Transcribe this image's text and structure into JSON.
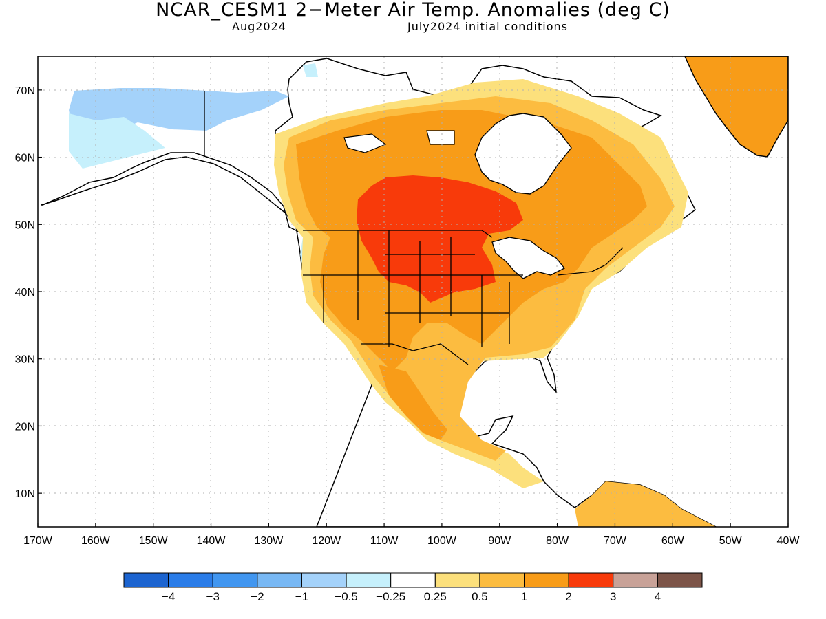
{
  "header": {
    "title": "NCAR_CESM1 2−Meter Air Temp. Anomalies (deg C)",
    "valid_month": "Aug2024",
    "init_conditions": "July2024 initial conditions"
  },
  "axes": {
    "lon_labels": [
      "170W",
      "160W",
      "150W",
      "140W",
      "130W",
      "120W",
      "110W",
      "100W",
      "90W",
      "80W",
      "70W",
      "60W",
      "50W",
      "40W"
    ],
    "lat_labels": [
      "70N",
      "60N",
      "50N",
      "40N",
      "30N",
      "20N",
      "10N"
    ],
    "lon_range": [
      -170,
      -40
    ],
    "lat_range": [
      5,
      75
    ],
    "grid": "dotted"
  },
  "colorbar": {
    "labels": [
      "−4",
      "−3",
      "−2",
      "−1",
      "−0.5",
      "−0.25",
      "0.25",
      "0.5",
      "1",
      "2",
      "3",
      "4"
    ],
    "colors": [
      "#1c64d0",
      "#2a7ce8",
      "#4196f0",
      "#78b8f4",
      "#a4d2fa",
      "#c6f0fc",
      "#ffffff",
      "#fce07c",
      "#fcbc40",
      "#f89c18",
      "#f83a0a",
      "#c8a298",
      "#7c5448"
    ]
  },
  "map_data": {
    "projection": "cylindrical equidistant",
    "region": "North America",
    "variable": "2-meter air temperature anomaly (deg C)",
    "highlights": [
      {
        "region": "Northern Plains / south-central Canada",
        "category": "2 to 3"
      },
      {
        "region": "Western & central US, Mexico, eastern Canada",
        "category": "1 to 2"
      },
      {
        "region": "Greenland",
        "category": "1 to 2"
      },
      {
        "region": "Alaska",
        "category": "-1 to -0.25"
      },
      {
        "region": "Pacific Northwest coast",
        "category": "-0.5 to -0.25"
      }
    ]
  }
}
